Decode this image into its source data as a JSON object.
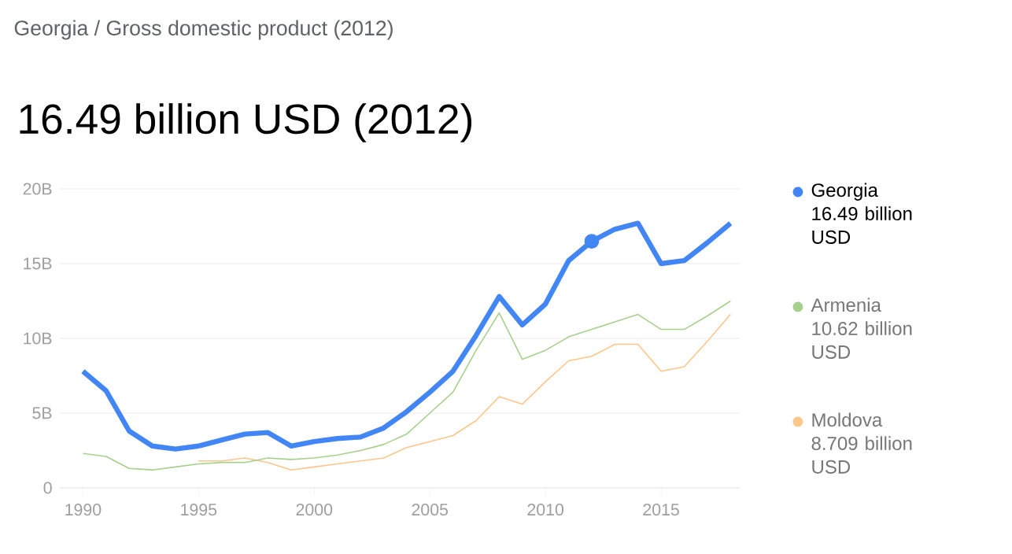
{
  "chart_data": {
    "type": "line",
    "title": "Georgia / Gross domestic product (2012)",
    "subtitle": "16.49 billion USD (2012)",
    "x": [
      1990,
      1991,
      1992,
      1993,
      1994,
      1995,
      1996,
      1997,
      1998,
      1999,
      2000,
      2001,
      2002,
      2003,
      2004,
      2005,
      2006,
      2007,
      2008,
      2009,
      2010,
      2011,
      2012,
      2013,
      2014,
      2015,
      2016,
      2017,
      2018
    ],
    "series": [
      {
        "name": "Georgia",
        "color": "#4285f4",
        "values": [
          7.8,
          6.5,
          3.8,
          2.8,
          2.6,
          2.8,
          3.2,
          3.6,
          3.7,
          2.8,
          3.1,
          3.3,
          3.4,
          4.0,
          5.1,
          6.4,
          7.8,
          10.2,
          12.8,
          10.9,
          12.3,
          15.2,
          16.49,
          17.3,
          17.7,
          15.0,
          15.2,
          16.4,
          17.7
        ]
      },
      {
        "name": "Armenia",
        "color": "#a8d08d",
        "values": [
          2.3,
          2.1,
          1.3,
          1.2,
          1.4,
          1.6,
          1.7,
          1.7,
          2.0,
          1.9,
          2.0,
          2.2,
          2.5,
          2.9,
          3.6,
          5.0,
          6.4,
          9.2,
          11.7,
          8.6,
          9.2,
          10.1,
          10.6,
          11.1,
          11.6,
          10.6,
          10.6,
          11.5,
          12.5
        ]
      },
      {
        "name": "Moldova",
        "color": "#fdc68a",
        "values": [
          null,
          null,
          null,
          null,
          null,
          1.8,
          1.8,
          2.0,
          1.7,
          1.2,
          1.4,
          1.6,
          1.8,
          2.0,
          2.7,
          3.1,
          3.5,
          4.5,
          6.1,
          5.6,
          7.1,
          8.5,
          8.8,
          9.6,
          9.6,
          7.8,
          8.1,
          9.8,
          11.6
        ]
      },
      {
        "type": "scatter",
        "color": "#4285f4",
        "x": [
          2012
        ],
        "values": [
          16.49
        ]
      }
    ],
    "annotations": [
      "16.49 billion USD",
      "10.62 billion USD",
      "8.709 billion USD"
    ],
    "xlim": [
      1989,
      2018.4
    ],
    "ylim": [
      0,
      20
    ],
    "xticks": [
      1990,
      1995,
      2000,
      2005,
      2010,
      2015
    ],
    "yticks": [
      0,
      {
        "value": 5,
        "label": "5B"
      },
      {
        "value": 10,
        "label": "10B"
      },
      {
        "value": 15,
        "label": "15B"
      },
      {
        "value": 20,
        "label": "20B"
      }
    ],
    "grid": "y",
    "legend": "right",
    "line_style": "solid"
  }
}
